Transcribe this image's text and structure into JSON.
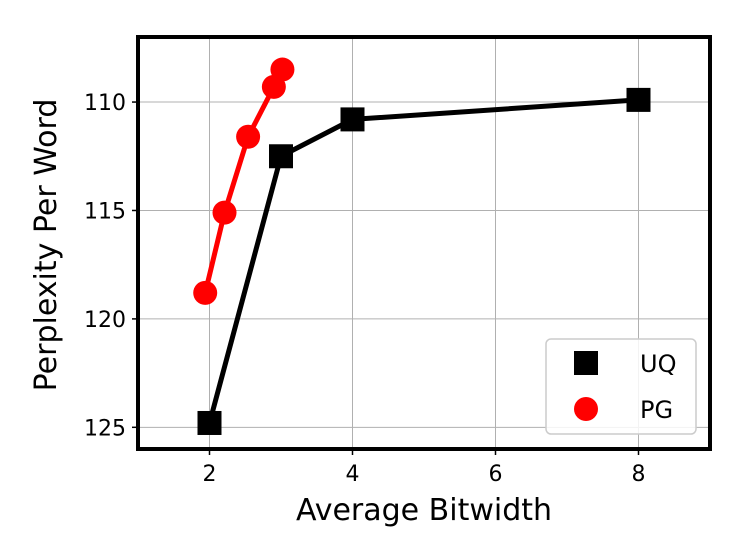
{
  "chart_data": {
    "type": "line",
    "xlabel": "Average Bitwidth",
    "ylabel": "Perplexity Per Word",
    "xlim": [
      1,
      9
    ],
    "ylim": [
      126,
      107
    ],
    "y_inverted": true,
    "xticks": [
      2,
      4,
      6,
      8
    ],
    "yticks": [
      110,
      115,
      120,
      125
    ],
    "grid": true,
    "legend_position": "lower-right",
    "series": [
      {
        "name": "UQ",
        "color": "#000000",
        "marker": "square",
        "x": [
          2,
          3,
          4,
          8
        ],
        "y": [
          124.8,
          112.5,
          110.8,
          109.9
        ]
      },
      {
        "name": "PG",
        "color": "#ff0000",
        "marker": "circle",
        "x": [
          1.94,
          2.21,
          2.54,
          2.9,
          3.02
        ],
        "y": [
          118.8,
          115.1,
          111.6,
          109.3,
          108.5
        ]
      }
    ]
  }
}
